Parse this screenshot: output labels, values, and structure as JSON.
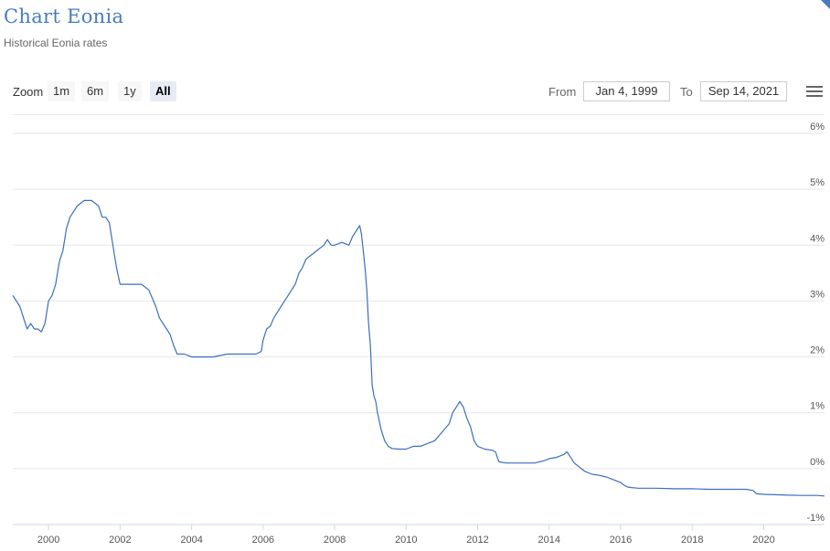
{
  "header": {
    "title": "Chart Eonia",
    "subtitle": "Historical Eonia rates"
  },
  "toolbar": {
    "zoom_label": "Zoom",
    "zoom_buttons": [
      {
        "label": "1m",
        "active": false
      },
      {
        "label": "6m",
        "active": false
      },
      {
        "label": "1y",
        "active": false
      },
      {
        "label": "All",
        "active": true
      }
    ],
    "from_label": "From",
    "from_value": "Jan 4, 1999",
    "to_label": "To",
    "to_value": "Sep 14, 2021",
    "menu_icon": "hamburger-icon"
  },
  "colors": {
    "accent": "#4a7bbf",
    "line": "#3a6fbe",
    "grid": "#e6e6e6"
  },
  "chart_data": {
    "type": "line",
    "title": "",
    "xlabel": "",
    "ylabel": "",
    "xlim": [
      1999.0,
      2021.7
    ],
    "ylim": [
      -1,
      6
    ],
    "grid": true,
    "y_ticks": [
      {
        "value": -1,
        "label": "-1%"
      },
      {
        "value": 0,
        "label": "0%"
      },
      {
        "value": 1,
        "label": "1%"
      },
      {
        "value": 2,
        "label": "2%"
      },
      {
        "value": 3,
        "label": "3%"
      },
      {
        "value": 4,
        "label": "4%"
      },
      {
        "value": 5,
        "label": "5%"
      },
      {
        "value": 6,
        "label": "6%"
      }
    ],
    "x_ticks": [
      {
        "value": 2000,
        "label": "2000"
      },
      {
        "value": 2002,
        "label": "2002"
      },
      {
        "value": 2004,
        "label": "2004"
      },
      {
        "value": 2006,
        "label": "2006"
      },
      {
        "value": 2008,
        "label": "2008"
      },
      {
        "value": 2010,
        "label": "2010"
      },
      {
        "value": 2012,
        "label": "2012"
      },
      {
        "value": 2014,
        "label": "2014"
      },
      {
        "value": 2016,
        "label": "2016"
      },
      {
        "value": 2018,
        "label": "2018"
      },
      {
        "value": 2020,
        "label": "2020"
      }
    ],
    "series": [
      {
        "name": "",
        "x": [
          1999.0,
          1999.1,
          1999.2,
          1999.3,
          1999.4,
          1999.5,
          1999.6,
          1999.7,
          1999.8,
          1999.9,
          2000.0,
          2000.1,
          2000.2,
          2000.3,
          2000.4,
          2000.5,
          2000.6,
          2000.7,
          2000.8,
          2000.9,
          2001.0,
          2001.1,
          2001.2,
          2001.3,
          2001.4,
          2001.5,
          2001.6,
          2001.7,
          2001.8,
          2001.9,
          2002.0,
          2002.2,
          2002.4,
          2002.6,
          2002.8,
          2003.0,
          2003.1,
          2003.2,
          2003.3,
          2003.4,
          2003.5,
          2003.6,
          2003.8,
          2004.0,
          2004.3,
          2004.6,
          2005.0,
          2005.4,
          2005.8,
          2005.95,
          2006.0,
          2006.1,
          2006.2,
          2006.3,
          2006.4,
          2006.5,
          2006.6,
          2006.7,
          2006.8,
          2006.9,
          2007.0,
          2007.1,
          2007.2,
          2007.3,
          2007.4,
          2007.5,
          2007.6,
          2007.7,
          2007.8,
          2007.9,
          2008.0,
          2008.2,
          2008.4,
          2008.5,
          2008.6,
          2008.7,
          2008.75,
          2008.8,
          2008.85,
          2008.9,
          2008.95,
          2009.0,
          2009.05,
          2009.1,
          2009.15,
          2009.2,
          2009.3,
          2009.4,
          2009.5,
          2009.6,
          2009.8,
          2010.0,
          2010.2,
          2010.4,
          2010.6,
          2010.8,
          2011.0,
          2011.2,
          2011.3,
          2011.4,
          2011.5,
          2011.6,
          2011.7,
          2011.8,
          2011.9,
          2012.0,
          2012.2,
          2012.4,
          2012.5,
          2012.55,
          2012.6,
          2012.8,
          2013.0,
          2013.3,
          2013.6,
          2013.9,
          2014.0,
          2014.2,
          2014.4,
          2014.5,
          2014.6,
          2014.7,
          2014.8,
          2014.9,
          2015.0,
          2015.2,
          2015.4,
          2015.6,
          2015.8,
          2016.0,
          2016.1,
          2016.2,
          2016.3,
          2016.5,
          2017.0,
          2017.5,
          2018.0,
          2018.5,
          2019.0,
          2019.5,
          2019.7,
          2019.8,
          2020.0,
          2020.5,
          2021.0,
          2021.5,
          2021.7
        ],
        "y": [
          3.1,
          3.0,
          2.9,
          2.7,
          2.5,
          2.6,
          2.5,
          2.5,
          2.45,
          2.6,
          3.0,
          3.1,
          3.3,
          3.7,
          3.9,
          4.3,
          4.5,
          4.6,
          4.7,
          4.75,
          4.8,
          4.8,
          4.8,
          4.75,
          4.7,
          4.5,
          4.5,
          4.4,
          4.0,
          3.6,
          3.3,
          3.3,
          3.3,
          3.3,
          3.2,
          2.9,
          2.7,
          2.6,
          2.5,
          2.4,
          2.2,
          2.05,
          2.05,
          2.0,
          2.0,
          2.0,
          2.05,
          2.05,
          2.05,
          2.1,
          2.3,
          2.5,
          2.55,
          2.7,
          2.8,
          2.9,
          3.0,
          3.1,
          3.2,
          3.3,
          3.5,
          3.6,
          3.75,
          3.8,
          3.85,
          3.9,
          3.95,
          4.0,
          4.1,
          4.0,
          4.0,
          4.05,
          4.0,
          4.15,
          4.25,
          4.35,
          4.2,
          3.9,
          3.6,
          3.2,
          2.6,
          2.2,
          1.5,
          1.3,
          1.2,
          1.0,
          0.7,
          0.5,
          0.4,
          0.36,
          0.35,
          0.35,
          0.4,
          0.4,
          0.45,
          0.5,
          0.65,
          0.8,
          1.0,
          1.1,
          1.2,
          1.1,
          0.9,
          0.75,
          0.5,
          0.4,
          0.35,
          0.33,
          0.3,
          0.2,
          0.12,
          0.1,
          0.1,
          0.1,
          0.1,
          0.15,
          0.18,
          0.2,
          0.25,
          0.3,
          0.2,
          0.1,
          0.05,
          0.0,
          -0.05,
          -0.1,
          -0.12,
          -0.15,
          -0.2,
          -0.25,
          -0.3,
          -0.33,
          -0.34,
          -0.35,
          -0.35,
          -0.36,
          -0.36,
          -0.37,
          -0.37,
          -0.37,
          -0.39,
          -0.45,
          -0.46,
          -0.47,
          -0.48,
          -0.48,
          -0.49
        ]
      }
    ]
  }
}
